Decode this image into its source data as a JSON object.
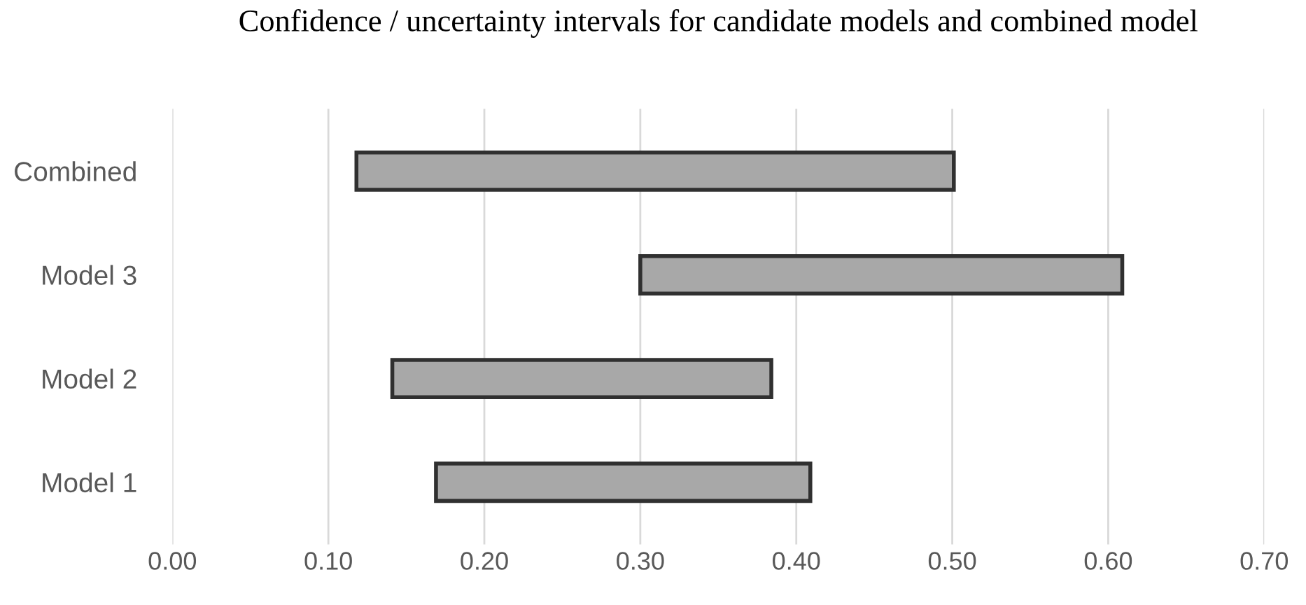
{
  "chart_data": {
    "type": "bar",
    "orientation": "horizontal",
    "title": "Confidence / uncertainty intervals for candidate models and combined model",
    "categories": [
      "Combined",
      "Model 3",
      "Model 2",
      "Model 1"
    ],
    "base": [
      0.118,
      0.3,
      0.141,
      0.169
    ],
    "values": [
      0.383,
      0.309,
      0.243,
      0.24
    ],
    "color": "#a8a8a8",
    "xlim": [
      0,
      0.7
    ],
    "xticks": [
      {
        "value": 0,
        "label": "0.00"
      },
      {
        "value": 0.1,
        "label": "0.10"
      },
      {
        "value": 0.2,
        "label": "0.20"
      },
      {
        "value": 0.3,
        "label": "0.30"
      },
      {
        "value": 0.4,
        "label": "0.40"
      },
      {
        "value": 0.5,
        "label": "0.50"
      },
      {
        "value": 0.6,
        "label": "0.60"
      },
      {
        "value": 0.7,
        "label": "0.70"
      }
    ],
    "grid": "x"
  }
}
